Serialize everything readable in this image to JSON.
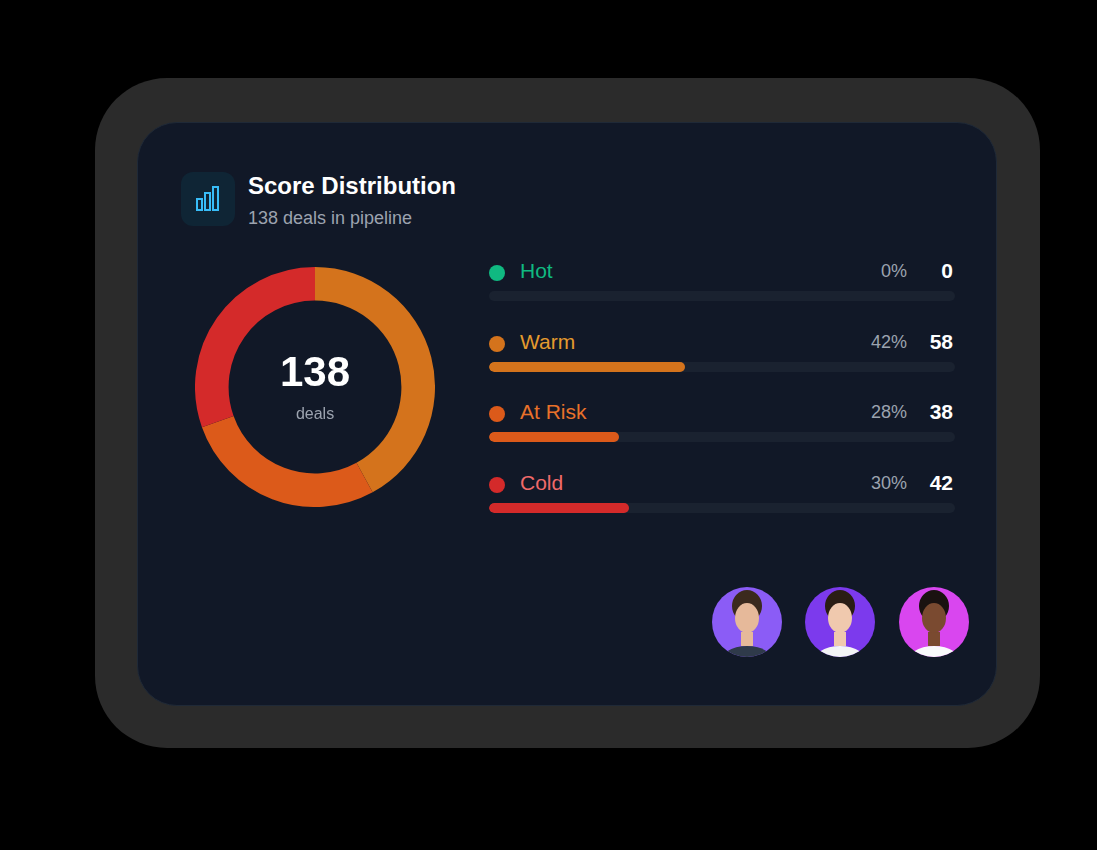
{
  "chart_data": {
    "type": "doughnut",
    "title": "Score Distribution",
    "subtitle": "138 deals in pipeline",
    "center_value": 138,
    "center_label": "deals",
    "categories": [
      "Hot",
      "Warm",
      "At Risk",
      "Cold"
    ],
    "values": [
      0,
      58,
      38,
      42
    ],
    "percentages": [
      0,
      42,
      28,
      30
    ],
    "percent_labels": [
      "0%",
      "42%",
      "28%",
      "30%"
    ],
    "colors": [
      "#10b981",
      "#d4731c",
      "#dc5a1a",
      "#d42a2a"
    ]
  }
}
